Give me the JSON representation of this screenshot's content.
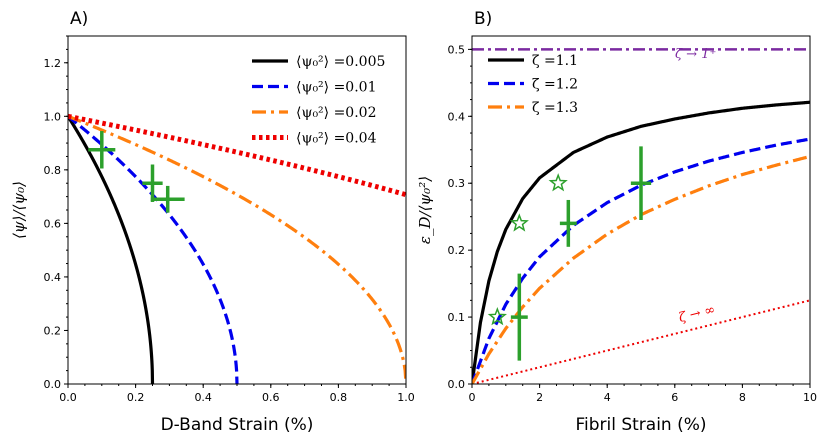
{
  "chart_data": [
    {
      "panel": "A)",
      "type": "line",
      "xlabel": "D-Band Strain (%)",
      "ylabel": "⟨ψ⟩/⟨ψ₀⟩",
      "xlim": [
        0,
        1.0
      ],
      "ylim": [
        0,
        1.3
      ],
      "xticks": [
        "0.0",
        "0.2",
        "0.4",
        "0.6",
        "0.8",
        "1.0"
      ],
      "yticks": [
        "0.0",
        "0.2",
        "0.4",
        "0.6",
        "0.8",
        "1.0",
        "1.2"
      ],
      "legend_position": "top-right",
      "series": [
        {
          "name": "⟨ψ₀²⟩ =0.005",
          "color": "#000000",
          "style": "solid",
          "strain_max": 0.25,
          "x": [
            0,
            0.025,
            0.05,
            0.075,
            0.1,
            0.125,
            0.15,
            0.175,
            0.2,
            0.225,
            0.24,
            0.25
          ],
          "y": [
            1.0,
            0.949,
            0.894,
            0.837,
            0.775,
            0.707,
            0.632,
            0.548,
            0.447,
            0.316,
            0.2,
            0.0
          ]
        },
        {
          "name": "⟨ψ₀²⟩ =0.01",
          "color": "#0000ee",
          "style": "dashed",
          "strain_max": 0.5,
          "x": [
            0,
            0.05,
            0.1,
            0.15,
            0.2,
            0.25,
            0.3,
            0.35,
            0.4,
            0.45,
            0.48,
            0.5
          ],
          "y": [
            1.0,
            0.949,
            0.894,
            0.837,
            0.775,
            0.707,
            0.632,
            0.548,
            0.447,
            0.316,
            0.2,
            0.0
          ]
        },
        {
          "name": "⟨ψ₀²⟩ =0.02",
          "color": "#ff7f0e",
          "style": "dashdot",
          "strain_max": 1.0,
          "x": [
            0,
            0.1,
            0.2,
            0.3,
            0.4,
            0.5,
            0.6,
            0.7,
            0.8,
            0.9,
            0.96,
            1.0
          ],
          "y": [
            1.0,
            0.949,
            0.894,
            0.837,
            0.775,
            0.707,
            0.632,
            0.548,
            0.447,
            0.316,
            0.2,
            0.0
          ]
        },
        {
          "name": "⟨ψ₀²⟩ =0.04",
          "color": "#ee0000",
          "style": "dotted",
          "strain_max": 2.0,
          "x": [
            0,
            0.25,
            0.5,
            0.75,
            1.0
          ],
          "y": [
            1.0,
            0.935,
            0.866,
            0.791,
            0.707
          ]
        }
      ],
      "points": [
        {
          "x": 0.1,
          "y": 0.875,
          "xerr": 0.04,
          "yerr": 0.07
        },
        {
          "x": 0.25,
          "y": 0.75,
          "xerr": 0.03,
          "yerr": 0.07
        },
        {
          "x": 0.295,
          "y": 0.69,
          "xerr": 0.05,
          "yerr": 0.05
        }
      ]
    },
    {
      "panel": "B)",
      "type": "line",
      "xlabel": "Fibril Strain (%)",
      "ylabel": "ε_D/⟨ψ₀²⟩",
      "xlim": [
        0,
        10
      ],
      "ylim": [
        0,
        0.52
      ],
      "xticks": [
        "0",
        "2",
        "4",
        "6",
        "8",
        "10"
      ],
      "yticks": [
        "0.0",
        "0.1",
        "0.2",
        "0.3",
        "0.4",
        "0.5"
      ],
      "legend_position": "top-left",
      "series": [
        {
          "name": "ζ =1.1",
          "color": "#000000",
          "style": "solid",
          "x": [
            0,
            0.25,
            0.5,
            0.75,
            1,
            1.5,
            2,
            3,
            4,
            5,
            6,
            7,
            8,
            9,
            10
          ],
          "y": [
            0,
            0.092,
            0.154,
            0.198,
            0.231,
            0.277,
            0.308,
            0.346,
            0.369,
            0.385,
            0.396,
            0.405,
            0.412,
            0.417,
            0.421
          ]
        },
        {
          "name": "ζ =1.2",
          "color": "#0000ee",
          "style": "dashed",
          "x": [
            0,
            0.5,
            1,
            1.5,
            2,
            3,
            4,
            5,
            6,
            7,
            8,
            9,
            10
          ],
          "y": [
            0,
            0.068,
            0.119,
            0.158,
            0.19,
            0.237,
            0.271,
            0.297,
            0.317,
            0.333,
            0.346,
            0.357,
            0.366
          ]
        },
        {
          "name": "ζ =1.3",
          "color": "#ff7f0e",
          "style": "dashdot",
          "x": [
            0,
            0.5,
            1,
            1.5,
            2,
            3,
            4,
            5,
            6,
            7,
            8,
            9,
            10
          ],
          "y": [
            0,
            0.045,
            0.083,
            0.115,
            0.143,
            0.188,
            0.224,
            0.253,
            0.276,
            0.296,
            0.313,
            0.327,
            0.34
          ]
        }
      ],
      "reference_lines": [
        {
          "label": "ζ → 1⁺",
          "color": "#7b2aa0",
          "style": "dashdot",
          "x": [
            0,
            10
          ],
          "y": [
            0.5,
            0.5
          ]
        },
        {
          "label": "ζ → ∞",
          "color": "#ee0000",
          "style": "dotted",
          "x": [
            0,
            10
          ],
          "y": [
            0,
            0.125
          ]
        }
      ],
      "points": [
        {
          "x": 1.4,
          "y": 0.1,
          "xerr": 0.25,
          "yerr": 0.065
        },
        {
          "x": 2.85,
          "y": 0.24,
          "xerr": 0.25,
          "yerr": 0.035
        },
        {
          "x": 5.0,
          "y": 0.3,
          "xerr": 0.3,
          "yerr": 0.055
        }
      ],
      "stars": [
        {
          "x": 0.75,
          "y": 0.1
        },
        {
          "x": 1.4,
          "y": 0.24
        },
        {
          "x": 2.55,
          "y": 0.3
        }
      ]
    }
  ]
}
